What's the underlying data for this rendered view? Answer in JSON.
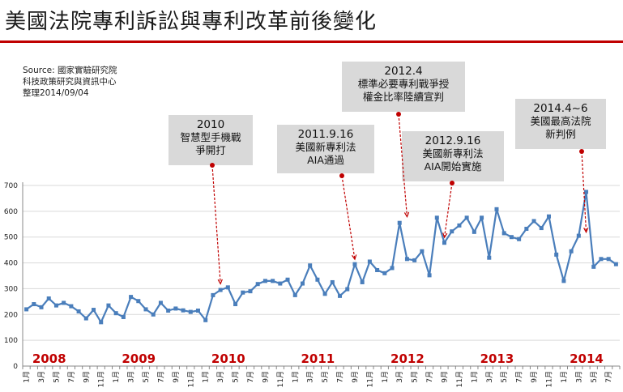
{
  "header": {
    "title": "美國法院專利訴訟與專利改革前後變化",
    "accent_color": "#c00000"
  },
  "source": {
    "line1": "Source: 國家實驗研究院",
    "line2": "科技政策研究與資訊中心",
    "line3": "整理2014/09/04"
  },
  "annotations": [
    {
      "date": "2010",
      "line1": "智慧型手機戰",
      "line2": "爭開打",
      "x_index": 26,
      "y": 300
    },
    {
      "date": "2011.9.16",
      "line1": "美國新專利法",
      "line2": "AIA通過",
      "x_index": 44,
      "y": 395
    },
    {
      "date": "2012.4",
      "line1": "標準必要專利戰爭授",
      "line2": "權金比率陸續宣判",
      "x_index": 51,
      "y": 560
    },
    {
      "date": "2012.9.16",
      "line1": "美國新專利法",
      "line2": "AIA開始實施",
      "x_index": 56,
      "y": 480
    },
    {
      "date": "2014.4~6",
      "line1": "美國最高法院",
      "line2": "新判例",
      "x_index": 75,
      "y": 500
    }
  ],
  "chart_data": {
    "type": "line",
    "title": "美國法院專利訴訟與專利改革前後變化",
    "xlabel": "",
    "ylabel": "",
    "ylim": [
      0,
      700
    ],
    "yticks": [
      0,
      100,
      200,
      300,
      400,
      500,
      600,
      700
    ],
    "grid": true,
    "line_color": "#4a7ebb",
    "years": [
      "2008",
      "2009",
      "2010",
      "2011",
      "2012",
      "2013",
      "2014"
    ],
    "month_ticks": [
      "1月",
      "3月",
      "5月",
      "7月",
      "9月",
      "11月"
    ],
    "series": [
      {
        "values": [
          220,
          240,
          228,
          262,
          235,
          245,
          232,
          212,
          185,
          218,
          170,
          235,
          205,
          190,
          268,
          252,
          220,
          200,
          245,
          215,
          223,
          216,
          210,
          215,
          178,
          275,
          295,
          305,
          240,
          285,
          290,
          318,
          330,
          330,
          320,
          335,
          275,
          320,
          390,
          335,
          280,
          325,
          272,
          298,
          395,
          325,
          405,
          372,
          360,
          380,
          555,
          415,
          410,
          445,
          352,
          575,
          478,
          522,
          545,
          575,
          520,
          575,
          420,
          608,
          515,
          500,
          492,
          532,
          562,
          535,
          580,
          432,
          330,
          445,
          505,
          675,
          385,
          415,
          415,
          395
        ]
      }
    ]
  }
}
